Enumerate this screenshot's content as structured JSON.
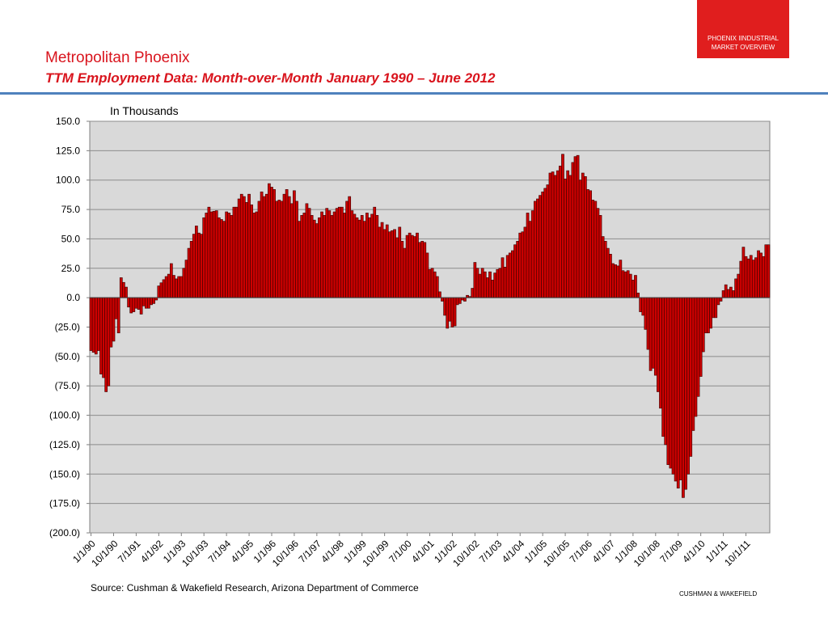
{
  "badge": {
    "line1": "PHOENIX IINDUSTRIAL",
    "line2": "MARKET OVERVIEW"
  },
  "header": {
    "title": "Metropolitan Phoenix",
    "subtitle": "TTM Employment Data: Month-over-Month January 1990 – June 2012"
  },
  "source": "Source: Cushman & Wakefield Research, Arizona Department of Commerce",
  "footer": "CUSHMAN & WAKEFIELD",
  "colors": {
    "accent": "#d9141d",
    "bar": "#cc0000",
    "bar_outline": "#3a0000",
    "plot_bg": "#d9d9d9",
    "rule": "#4f81bd"
  },
  "chart_data": {
    "type": "bar",
    "unit_label": "In Thousands",
    "ylim": [
      -200,
      150
    ],
    "y_ticks": [
      "150.0",
      "125.0",
      "100.0",
      "75.0",
      "50.0",
      "25.0",
      "0.0",
      "(25.0)",
      "(50.0)",
      "(75.0)",
      "(100.0)",
      "(125.0)",
      "(150.0)",
      "(175.0)",
      "(200.0)"
    ],
    "x_tick_labels": [
      "1/1/90",
      "10/1/90",
      "7/1/91",
      "4/1/92",
      "1/1/93",
      "10/1/93",
      "7/1/94",
      "4/1/95",
      "1/1/96",
      "10/1/96",
      "7/1/97",
      "4/1/98",
      "1/1/99",
      "10/1/99",
      "7/1/00",
      "4/1/01",
      "1/1/02",
      "10/1/02",
      "7/1/03",
      "4/1/04",
      "1/1/05",
      "10/1/05",
      "7/1/06",
      "4/1/07",
      "1/1/08",
      "10/1/08",
      "7/1/09",
      "4/1/10",
      "1/1/11",
      "10/1/11"
    ],
    "x_tick_every_months": 9,
    "grid": true,
    "anchors": [
      [
        0,
        -45
      ],
      [
        2,
        -48
      ],
      [
        3,
        -45
      ],
      [
        4,
        -65
      ],
      [
        5,
        -68
      ],
      [
        6,
        -80
      ],
      [
        7,
        -75
      ],
      [
        8,
        -42
      ],
      [
        9,
        -37
      ],
      [
        10,
        -18
      ],
      [
        11,
        -30
      ],
      [
        12,
        17
      ],
      [
        13,
        13
      ],
      [
        14,
        9
      ],
      [
        15,
        -8
      ],
      [
        16,
        -13
      ],
      [
        17,
        -12
      ],
      [
        18,
        -9
      ],
      [
        19,
        -10
      ],
      [
        20,
        -14
      ],
      [
        21,
        -7
      ],
      [
        22,
        -9
      ],
      [
        23,
        -9
      ],
      [
        24,
        -6
      ],
      [
        25,
        -5
      ],
      [
        26,
        -2
      ],
      [
        27,
        10
      ],
      [
        30,
        18
      ],
      [
        31,
        20
      ],
      [
        32,
        29
      ],
      [
        33,
        19
      ],
      [
        34,
        16
      ],
      [
        35,
        18
      ],
      [
        36,
        18
      ],
      [
        37,
        25
      ],
      [
        38,
        32
      ],
      [
        39,
        42
      ],
      [
        41,
        54
      ],
      [
        42,
        61
      ],
      [
        43,
        55
      ],
      [
        44,
        54
      ],
      [
        45,
        68
      ],
      [
        46,
        72
      ],
      [
        47,
        77
      ],
      [
        48,
        73
      ],
      [
        50,
        74
      ],
      [
        51,
        68
      ],
      [
        53,
        65
      ],
      [
        54,
        73
      ],
      [
        55,
        72
      ],
      [
        56,
        70
      ],
      [
        57,
        77
      ],
      [
        58,
        77
      ],
      [
        59,
        84
      ],
      [
        60,
        88
      ],
      [
        61,
        86
      ],
      [
        62,
        81
      ],
      [
        63,
        88
      ],
      [
        64,
        79
      ],
      [
        65,
        72
      ],
      [
        66,
        73
      ],
      [
        67,
        82
      ],
      [
        68,
        90
      ],
      [
        69,
        86
      ],
      [
        70,
        88
      ],
      [
        71,
        97
      ],
      [
        72,
        94
      ],
      [
        73,
        92
      ],
      [
        74,
        82
      ],
      [
        75,
        83
      ],
      [
        76,
        82
      ],
      [
        77,
        88
      ],
      [
        78,
        92
      ],
      [
        79,
        86
      ],
      [
        80,
        80
      ],
      [
        81,
        91
      ],
      [
        82,
        82
      ],
      [
        83,
        65
      ],
      [
        84,
        70
      ],
      [
        85,
        72
      ],
      [
        86,
        80
      ],
      [
        87,
        76
      ],
      [
        88,
        70
      ],
      [
        89,
        66
      ],
      [
        90,
        63
      ],
      [
        91,
        68
      ],
      [
        92,
        73
      ],
      [
        93,
        70
      ],
      [
        94,
        76
      ],
      [
        95,
        74
      ],
      [
        96,
        70
      ],
      [
        97,
        73
      ],
      [
        98,
        76
      ],
      [
        99,
        77
      ],
      [
        100,
        77
      ],
      [
        101,
        72
      ],
      [
        102,
        82
      ],
      [
        103,
        86
      ],
      [
        104,
        74
      ],
      [
        105,
        71
      ],
      [
        106,
        68
      ],
      [
        107,
        66
      ],
      [
        108,
        70
      ],
      [
        109,
        65
      ],
      [
        110,
        72
      ],
      [
        111,
        68
      ],
      [
        112,
        71
      ],
      [
        113,
        77
      ],
      [
        114,
        70
      ],
      [
        115,
        60
      ],
      [
        116,
        64
      ],
      [
        117,
        58
      ],
      [
        118,
        62
      ],
      [
        119,
        56
      ],
      [
        120,
        57
      ],
      [
        121,
        58
      ],
      [
        122,
        51
      ],
      [
        123,
        60
      ],
      [
        124,
        48
      ],
      [
        125,
        42
      ],
      [
        126,
        53
      ],
      [
        127,
        55
      ],
      [
        128,
        53
      ],
      [
        129,
        52
      ],
      [
        130,
        55
      ],
      [
        131,
        47
      ],
      [
        132,
        48
      ],
      [
        133,
        47
      ],
      [
        134,
        38
      ],
      [
        135,
        24
      ],
      [
        136,
        25
      ],
      [
        137,
        22
      ],
      [
        138,
        18
      ],
      [
        139,
        5
      ],
      [
        140,
        -3
      ],
      [
        141,
        -15
      ],
      [
        142,
        -26
      ],
      [
        143,
        -20
      ],
      [
        144,
        -25
      ],
      [
        145,
        -24
      ],
      [
        146,
        -6
      ],
      [
        147,
        -5
      ],
      [
        148,
        -2
      ],
      [
        149,
        -3
      ],
      [
        150,
        2
      ],
      [
        151,
        1
      ],
      [
        152,
        8
      ],
      [
        153,
        30
      ],
      [
        154,
        25
      ],
      [
        155,
        20
      ],
      [
        156,
        25
      ],
      [
        157,
        22
      ],
      [
        158,
        17
      ],
      [
        159,
        22
      ],
      [
        160,
        15
      ],
      [
        161,
        21
      ],
      [
        162,
        24
      ],
      [
        163,
        25
      ],
      [
        164,
        34
      ],
      [
        165,
        26
      ],
      [
        166,
        36
      ],
      [
        167,
        38
      ],
      [
        168,
        40
      ],
      [
        169,
        45
      ],
      [
        170,
        48
      ],
      [
        171,
        55
      ],
      [
        172,
        56
      ],
      [
        173,
        60
      ],
      [
        174,
        72
      ],
      [
        175,
        65
      ],
      [
        176,
        74
      ],
      [
        177,
        82
      ],
      [
        178,
        84
      ],
      [
        179,
        87
      ],
      [
        180,
        90
      ],
      [
        181,
        93
      ],
      [
        182,
        96
      ],
      [
        183,
        106
      ],
      [
        184,
        107
      ],
      [
        185,
        104
      ],
      [
        186,
        108
      ],
      [
        187,
        112
      ],
      [
        188,
        122
      ],
      [
        189,
        101
      ],
      [
        190,
        108
      ],
      [
        191,
        104
      ],
      [
        192,
        115
      ],
      [
        193,
        120
      ],
      [
        194,
        121
      ],
      [
        195,
        100
      ],
      [
        196,
        106
      ],
      [
        197,
        103
      ],
      [
        198,
        92
      ],
      [
        199,
        91
      ],
      [
        200,
        83
      ],
      [
        201,
        82
      ],
      [
        202,
        76
      ],
      [
        203,
        70
      ],
      [
        204,
        52
      ],
      [
        205,
        48
      ],
      [
        206,
        42
      ],
      [
        207,
        37
      ],
      [
        208,
        29
      ],
      [
        209,
        28
      ],
      [
        210,
        27
      ],
      [
        211,
        32
      ],
      [
        212,
        23
      ],
      [
        213,
        22
      ],
      [
        214,
        23
      ],
      [
        215,
        20
      ],
      [
        216,
        15
      ],
      [
        217,
        19
      ],
      [
        218,
        4
      ],
      [
        219,
        -12
      ],
      [
        220,
        -15
      ],
      [
        221,
        -27
      ],
      [
        222,
        -44
      ],
      [
        223,
        -62
      ],
      [
        224,
        -60
      ],
      [
        225,
        -66
      ],
      [
        226,
        -80
      ],
      [
        227,
        -94
      ],
      [
        228,
        -118
      ],
      [
        229,
        -125
      ],
      [
        230,
        -142
      ],
      [
        231,
        -145
      ],
      [
        232,
        -150
      ],
      [
        233,
        -156
      ],
      [
        234,
        -162
      ],
      [
        235,
        -155
      ],
      [
        236,
        -170
      ],
      [
        237,
        -163
      ],
      [
        238,
        -150
      ],
      [
        239,
        -135
      ],
      [
        240,
        -113
      ],
      [
        241,
        -101
      ],
      [
        242,
        -84
      ],
      [
        243,
        -67
      ],
      [
        244,
        -46
      ],
      [
        245,
        -30
      ],
      [
        246,
        -30
      ],
      [
        247,
        -26
      ],
      [
        248,
        -17
      ],
      [
        249,
        -17
      ],
      [
        250,
        -6
      ],
      [
        251,
        -3
      ],
      [
        252,
        6
      ],
      [
        253,
        11
      ],
      [
        254,
        7
      ],
      [
        255,
        9
      ],
      [
        256,
        6
      ],
      [
        257,
        16
      ],
      [
        258,
        20
      ],
      [
        259,
        31
      ],
      [
        260,
        43
      ],
      [
        261,
        35
      ],
      [
        262,
        33
      ],
      [
        263,
        36
      ],
      [
        264,
        32
      ],
      [
        265,
        34
      ],
      [
        266,
        40
      ],
      [
        267,
        38
      ],
      [
        268,
        35
      ],
      [
        269,
        45
      ],
      [
        270,
        45
      ]
    ]
  }
}
